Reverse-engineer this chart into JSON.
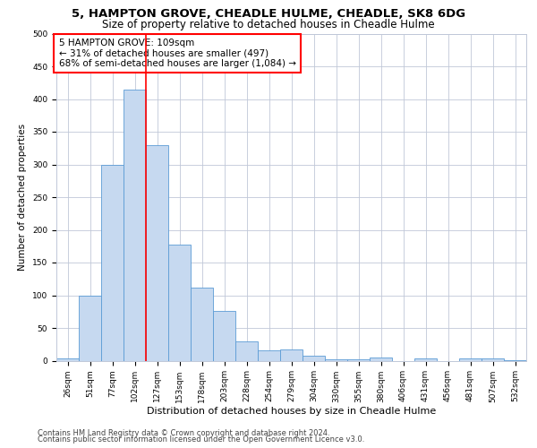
{
  "title1": "5, HAMPTON GROVE, CHEADLE HULME, CHEADLE, SK8 6DG",
  "title2": "Size of property relative to detached houses in Cheadle Hulme",
  "xlabel": "Distribution of detached houses by size in Cheadle Hulme",
  "ylabel": "Number of detached properties",
  "categories": [
    "26sqm",
    "51sqm",
    "77sqm",
    "102sqm",
    "127sqm",
    "153sqm",
    "178sqm",
    "203sqm",
    "228sqm",
    "254sqm",
    "279sqm",
    "304sqm",
    "330sqm",
    "355sqm",
    "380sqm",
    "406sqm",
    "431sqm",
    "456sqm",
    "481sqm",
    "507sqm",
    "532sqm"
  ],
  "values": [
    3,
    99,
    300,
    415,
    330,
    178,
    112,
    76,
    30,
    16,
    17,
    8,
    2,
    2,
    5,
    0,
    4,
    0,
    4,
    3,
    1
  ],
  "bar_color": "#c6d9f0",
  "bar_edge_color": "#5b9bd5",
  "red_line_x": 3.5,
  "annotation_text": "5 HAMPTON GROVE: 109sqm\n← 31% of detached houses are smaller (497)\n68% of semi-detached houses are larger (1,084) →",
  "annotation_box_color": "white",
  "annotation_box_edge_color": "red",
  "grid_color": "#c0c8d8",
  "background_color": "white",
  "ylim": [
    0,
    500
  ],
  "yticks": [
    0,
    50,
    100,
    150,
    200,
    250,
    300,
    350,
    400,
    450,
    500
  ],
  "footer1": "Contains HM Land Registry data © Crown copyright and database right 2024.",
  "footer2": "Contains public sector information licensed under the Open Government Licence v3.0.",
  "title1_fontsize": 9.5,
  "title2_fontsize": 8.5,
  "xlabel_fontsize": 8,
  "ylabel_fontsize": 7.5,
  "tick_fontsize": 6.5,
  "annotation_fontsize": 7.5,
  "footer_fontsize": 6
}
